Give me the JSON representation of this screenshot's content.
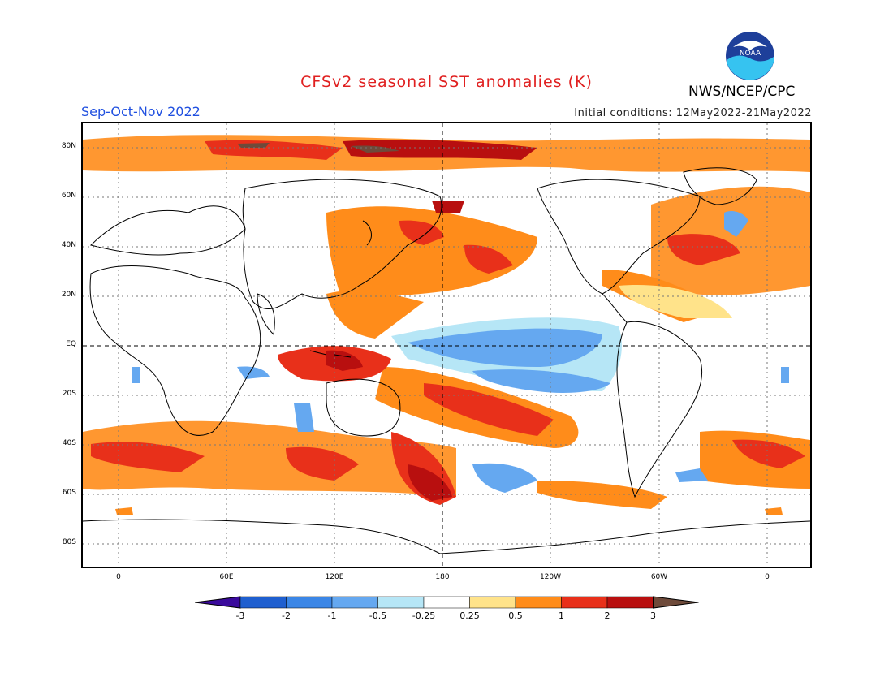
{
  "title": "CFSv2 seasonal SST anomalies (K)",
  "season": "Sep-Oct-Nov 2022",
  "initial_conditions": "Initial conditions: 12May2022-21May2022",
  "agency": "NWS/NCEP/CPC",
  "logo_text": "NOAA",
  "lat_labels": [
    "80N",
    "60N",
    "40N",
    "20N",
    "EQ",
    "20S",
    "40S",
    "60S",
    "80S"
  ],
  "lon_labels": [
    "0",
    "60E",
    "120E",
    "180",
    "120W",
    "60W",
    "0"
  ],
  "colorbar": {
    "ticks": [
      "-3",
      "-2",
      "-1",
      "-0.5",
      "-0.25",
      "0.25",
      "0.5",
      "1",
      "2",
      "3"
    ],
    "colors": [
      "#3a0a9c",
      "#1f5fcf",
      "#3b86e6",
      "#65a8f0",
      "#b6e6f6",
      "#ffffff",
      "#ffe38a",
      "#ff8c1a",
      "#e8301a",
      "#b80f0f",
      "#6e4a3a"
    ]
  }
}
